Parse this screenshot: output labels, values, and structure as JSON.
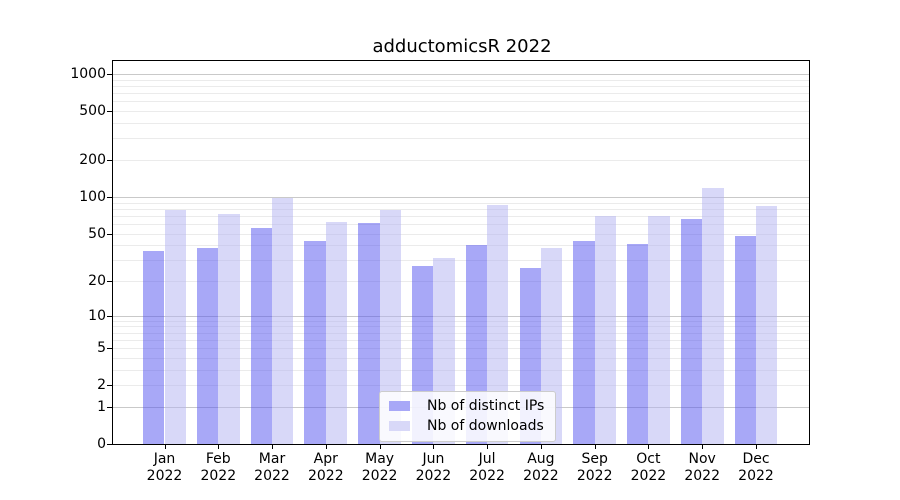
{
  "title": "adductomicsR 2022",
  "legend": {
    "items": [
      {
        "label": "Nb of distinct IPs",
        "color": "#a8a8f7"
      },
      {
        "label": "Nb of downloads",
        "color": "#d8d8f8"
      }
    ]
  },
  "colors": {
    "bar_distinct_ips": "rgba(81,81,239,0.5)",
    "bar_downloads": "rgba(177,177,241,0.5)",
    "grid_major": "#c9c9c9",
    "grid_minor": "#ebebeb",
    "axis": "#000000"
  },
  "chart_data": {
    "type": "bar",
    "title": "adductomicsR 2022",
    "categories": [
      "Jan",
      "Feb",
      "Mar",
      "Apr",
      "May",
      "Jun",
      "Jul",
      "Aug",
      "Sep",
      "Oct",
      "Nov",
      "Dec"
    ],
    "category_year": "2022",
    "series": [
      {
        "name": "Nb of distinct IPs",
        "values": [
          36,
          38,
          56,
          43,
          61,
          27,
          40,
          26,
          43,
          41,
          66,
          48
        ]
      },
      {
        "name": "Nb of downloads",
        "values": [
          78,
          72,
          98,
          62,
          78,
          31,
          86,
          38,
          70,
          70,
          118,
          85
        ]
      }
    ],
    "xlabel": "",
    "ylabel": "",
    "yscale": "log10(value+1)",
    "yticks": [
      0,
      1,
      2,
      5,
      10,
      20,
      50,
      100,
      200,
      500,
      1000
    ],
    "ylim": [
      0,
      1275
    ],
    "grid": "on",
    "legend_position": "lower center"
  }
}
